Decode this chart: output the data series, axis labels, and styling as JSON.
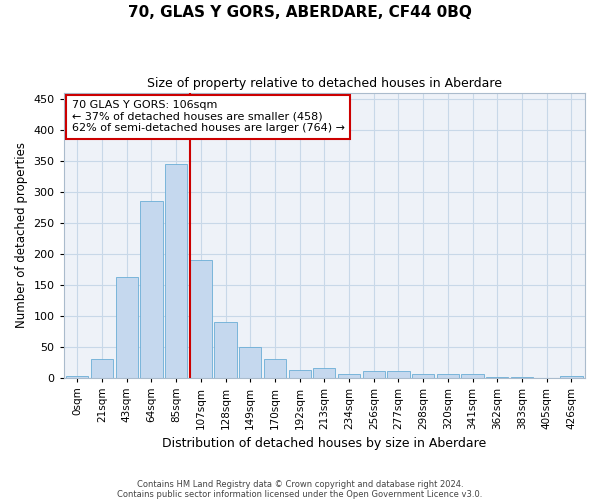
{
  "title": "70, GLAS Y GORS, ABERDARE, CF44 0BQ",
  "subtitle": "Size of property relative to detached houses in Aberdare",
  "xlabel": "Distribution of detached houses by size in Aberdare",
  "ylabel": "Number of detached properties",
  "footer_line1": "Contains HM Land Registry data © Crown copyright and database right 2024.",
  "footer_line2": "Contains public sector information licensed under the Open Government Licence v3.0.",
  "bin_labels": [
    "0sqm",
    "21sqm",
    "43sqm",
    "64sqm",
    "85sqm",
    "107sqm",
    "128sqm",
    "149sqm",
    "170sqm",
    "192sqm",
    "213sqm",
    "234sqm",
    "256sqm",
    "277sqm",
    "298sqm",
    "320sqm",
    "341sqm",
    "362sqm",
    "383sqm",
    "405sqm",
    "426sqm"
  ],
  "bar_values": [
    2,
    30,
    162,
    285,
    345,
    190,
    90,
    50,
    30,
    12,
    16,
    6,
    10,
    10,
    5,
    6,
    6,
    1,
    1,
    0,
    2
  ],
  "bar_color": "#c5d8ee",
  "bar_edge_color": "#6baed6",
  "property_line_x": 4.575,
  "annotation_line1": "70 GLAS Y GORS: 106sqm",
  "annotation_line2": "← 37% of detached houses are smaller (458)",
  "annotation_line3": "62% of semi-detached houses are larger (764) →",
  "box_color": "#cc0000",
  "ylim": [
    0,
    460
  ],
  "yticks": [
    0,
    50,
    100,
    150,
    200,
    250,
    300,
    350,
    400,
    450
  ],
  "grid_color": "#c8d8e8",
  "background_color": "#eef2f8"
}
